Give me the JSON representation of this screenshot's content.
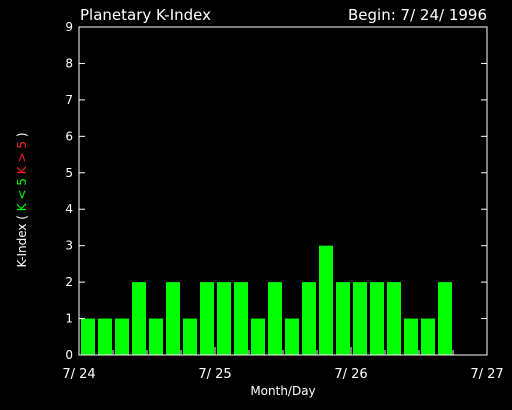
{
  "chart_data": {
    "type": "bar",
    "title": "Planetary K-Index",
    "begin_label": "Begin: 7/ 24/ 1996",
    "xlabel": "Month/Day",
    "ylabel_parts": [
      {
        "text": "K-Index",
        "color": "#ffffff"
      },
      {
        "text": "(",
        "color": "#ffffff"
      },
      {
        "text": "K < 5",
        "color": "#00ff00"
      },
      {
        "text": "K > 5",
        "color": "#ff2020"
      },
      {
        "text": ")",
        "color": "#ffffff"
      }
    ],
    "ylim": [
      0,
      9
    ],
    "yticks": [
      "0",
      "1",
      "2",
      "3",
      "4",
      "5",
      "6",
      "7",
      "8",
      "9"
    ],
    "xlim": [
      0,
      24
    ],
    "xtick_labels": [
      {
        "x": 0,
        "label": "7/ 24"
      },
      {
        "x": 8,
        "label": "7/ 25"
      },
      {
        "x": 16,
        "label": "7/ 26"
      },
      {
        "x": 24,
        "label": "7/ 27"
      }
    ],
    "bar_width_slots": 1,
    "values": [
      1,
      1,
      1,
      2,
      1,
      2,
      1,
      2,
      2,
      2,
      1,
      2,
      1,
      2,
      3,
      2,
      2,
      2,
      2,
      1,
      1,
      2
    ],
    "colors": {
      "low": "#00ff00",
      "high": "#ff2020",
      "axis": "#ffffff",
      "background": "#000000"
    },
    "threshold": 5
  }
}
